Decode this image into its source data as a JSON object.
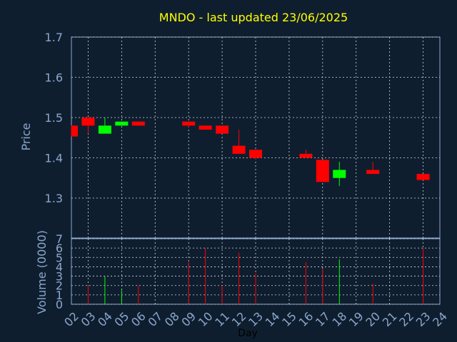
{
  "chart_data": {
    "type": "candlestick",
    "title": "MNDO - last updated 23/06/2025",
    "xlabel": "Day",
    "ylabel_price": "Price",
    "ylabel_volume": "Volume (0000)",
    "price_ylim": [
      1.3,
      1.7
    ],
    "price_ticks": [
      "1.3",
      "1.4",
      "1.5",
      "1.6",
      "1.7"
    ],
    "volume_ylim": [
      0,
      7
    ],
    "volume_ticks": [
      "0",
      "1",
      "2",
      "3",
      "4",
      "5",
      "6",
      "7"
    ],
    "x_ticks": [
      "02",
      "03",
      "04",
      "05",
      "06",
      "07",
      "08",
      "09",
      "10",
      "11",
      "12",
      "13",
      "14",
      "15",
      "16",
      "17",
      "18",
      "19",
      "20",
      "21",
      "22",
      "23",
      "24"
    ],
    "grid": true,
    "colors": {
      "up": "#00ff00",
      "down": "#ff0000",
      "title": "#ffff00",
      "axis": "#8aa8cc",
      "background": "#0f1e2f"
    },
    "candles": [
      {
        "day": "02",
        "open": 1.48,
        "high": 1.48,
        "low": 1.453,
        "close": 1.453,
        "volume": 0
      },
      {
        "day": "03",
        "open": 1.5,
        "high": 1.5,
        "low": 1.46,
        "close": 1.48,
        "volume": 2
      },
      {
        "day": "04",
        "open": 1.46,
        "high": 1.5,
        "low": 1.46,
        "close": 1.48,
        "volume": 3
      },
      {
        "day": "05",
        "open": 1.48,
        "high": 1.49,
        "low": 1.48,
        "close": 1.49,
        "volume": 1.5
      },
      {
        "day": "06",
        "open": 1.49,
        "high": 1.49,
        "low": 1.48,
        "close": 1.48,
        "volume": 2
      },
      {
        "day": "09",
        "open": 1.49,
        "high": 1.49,
        "low": 1.475,
        "close": 1.48,
        "volume": 4.5
      },
      {
        "day": "10",
        "open": 1.48,
        "high": 1.48,
        "low": 1.47,
        "close": 1.47,
        "volume": 6
      },
      {
        "day": "11",
        "open": 1.48,
        "high": 1.48,
        "low": 1.46,
        "close": 1.46,
        "volume": 2
      },
      {
        "day": "12",
        "open": 1.43,
        "high": 1.47,
        "low": 1.41,
        "close": 1.41,
        "volume": 5.5
      },
      {
        "day": "13",
        "open": 1.42,
        "high": 1.42,
        "low": 1.395,
        "close": 1.4,
        "volume": 3.3
      },
      {
        "day": "16",
        "open": 1.41,
        "high": 1.42,
        "low": 1.4,
        "close": 1.4,
        "volume": 4.5
      },
      {
        "day": "17",
        "open": 1.395,
        "high": 1.395,
        "low": 1.34,
        "close": 1.34,
        "volume": 3.8
      },
      {
        "day": "18",
        "open": 1.35,
        "high": 1.39,
        "low": 1.33,
        "close": 1.37,
        "volume": 4.8
      },
      {
        "day": "20",
        "open": 1.37,
        "high": 1.39,
        "low": 1.36,
        "close": 1.36,
        "volume": 2.2
      },
      {
        "day": "23",
        "open": 1.36,
        "high": 1.36,
        "low": 1.345,
        "close": 1.345,
        "volume": 6
      }
    ]
  }
}
